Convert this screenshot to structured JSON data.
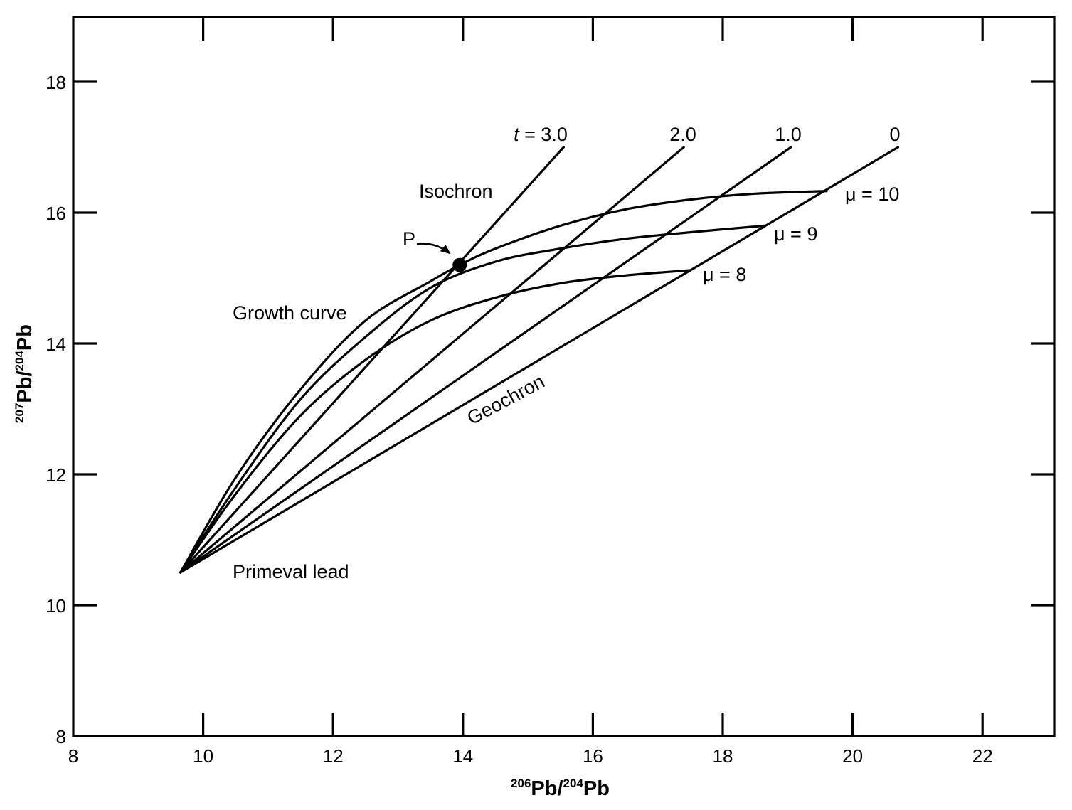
{
  "chart_data": {
    "type": "line",
    "title": "",
    "xlabel": {
      "sup1": "206",
      "main1": "Pb/",
      "sup2": "204",
      "main2": "Pb"
    },
    "ylabel": {
      "sup1": "207",
      "main1": "Pb/",
      "sup2": "204",
      "main2": "Pb"
    },
    "xlim": [
      8,
      23.1
    ],
    "ylim": [
      8,
      19
    ],
    "xticks": [
      8,
      10,
      12,
      14,
      16,
      18,
      20,
      22
    ],
    "yticks": [
      8,
      10,
      12,
      14,
      16,
      18
    ],
    "grid": false,
    "primeval_lead": {
      "label": "Primeval lead",
      "x": 9.65,
      "y": 10.5
    },
    "isochrons": [
      {
        "label_prefix": "t",
        "label": " = 3.0",
        "t": 3.0,
        "end": [
          15.55,
          17.0
        ]
      },
      {
        "label": "2.0",
        "t": 2.0,
        "end": [
          17.4,
          17.0
        ]
      },
      {
        "label": "1.0",
        "t": 1.0,
        "end": [
          19.05,
          17.0
        ]
      },
      {
        "label": "0",
        "t": 0,
        "end": [
          20.7,
          17.0
        ]
      }
    ],
    "growth_curves": [
      {
        "label": "μ = 10",
        "mu": 10,
        "points": [
          [
            9.65,
            10.5
          ],
          [
            10.5,
            11.95
          ],
          [
            11.5,
            13.3
          ],
          [
            12.5,
            14.35
          ],
          [
            13.5,
            14.95
          ],
          [
            13.95,
            15.2
          ],
          [
            14.5,
            15.45
          ],
          [
            15.5,
            15.8
          ],
          [
            16.5,
            16.05
          ],
          [
            17.5,
            16.2
          ],
          [
            18.5,
            16.29
          ],
          [
            19.6,
            16.33
          ]
        ]
      },
      {
        "label": "μ = 9",
        "mu": 9,
        "points": [
          [
            9.65,
            10.5
          ],
          [
            10.5,
            11.8
          ],
          [
            11.5,
            13.15
          ],
          [
            12.5,
            14.1
          ],
          [
            13.5,
            14.85
          ],
          [
            14.5,
            15.25
          ],
          [
            15.5,
            15.45
          ],
          [
            16.5,
            15.6
          ],
          [
            17.5,
            15.7
          ],
          [
            18.65,
            15.8
          ]
        ]
      },
      {
        "label": "μ = 8",
        "mu": 8,
        "points": [
          [
            9.65,
            10.5
          ],
          [
            10.5,
            11.7
          ],
          [
            11.5,
            12.9
          ],
          [
            12.5,
            13.75
          ],
          [
            13.5,
            14.35
          ],
          [
            14.5,
            14.7
          ],
          [
            15.5,
            14.92
          ],
          [
            16.5,
            15.04
          ],
          [
            17.5,
            15.12
          ]
        ]
      }
    ],
    "annotations": {
      "isochron": "Isochron",
      "growth_curve": "Growth curve",
      "geochron": "Geochron",
      "point_p": {
        "label": "P",
        "x": 13.95,
        "y": 15.2
      }
    }
  }
}
